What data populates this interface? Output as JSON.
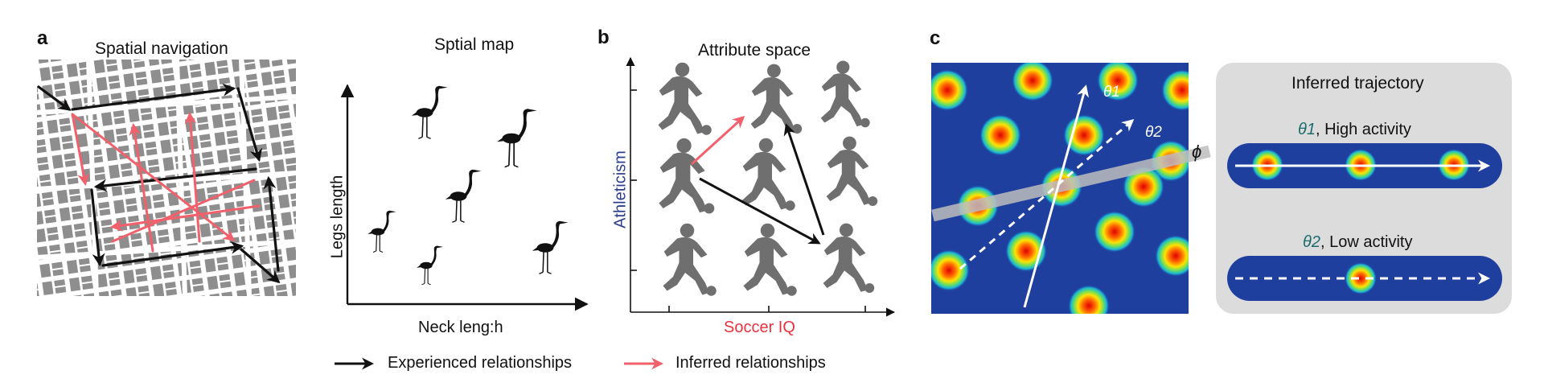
{
  "panel_a": {
    "letter": "a",
    "nav_title": "Spatial navigation",
    "map_title": "Sptial map",
    "y_axis_label": "Legs length",
    "x_axis_label": "Neck leng:h"
  },
  "panel_b": {
    "letter": "b",
    "title": "Attribute space",
    "y_axis_label": "Athleticism",
    "x_axis_label": "Soccer IQ"
  },
  "panel_c": {
    "letter": "c",
    "phi_label": "ϕ",
    "theta1_label": "θ1",
    "theta2_label": "θ2",
    "inferred_title": "Inferred trajectory",
    "track_high_theta": "θ1",
    "track_high_text": ", High activity",
    "track_low_theta": "θ2",
    "track_low_text": ", Low activity"
  },
  "legend": {
    "experienced": "Experienced relationships",
    "inferred": "Inferred relationships"
  },
  "icons": {
    "experienced_arrow": "black-arrow-icon",
    "inferred_arrow": "pink-arrow-icon",
    "bird": "heron-silhouette-icon",
    "player": "soccer-player-silhouette-icon",
    "map": "city-map-icon"
  },
  "colors": {
    "experienced": "#111111",
    "inferred": "#f2616b",
    "soccer_iq": "#e8333f",
    "athleticism": "#2b3f8c",
    "grid_field": "#1f3f9e",
    "theta_text": "#1a6b6b",
    "panel_bg": "#dcdcdc"
  }
}
